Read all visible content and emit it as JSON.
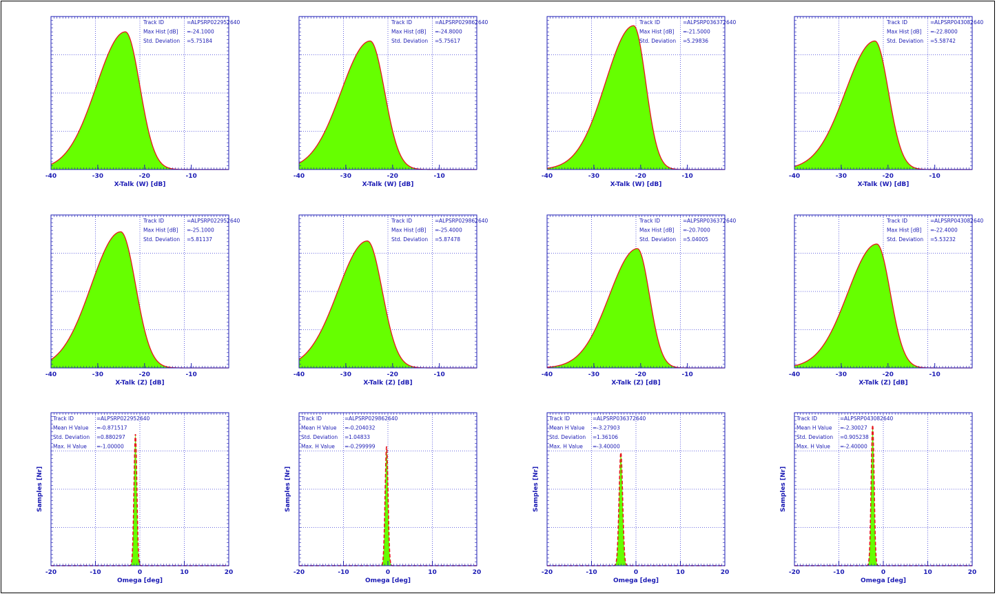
{
  "colors": {
    "axis": "#1b1bb4",
    "grid": "#3a3ad6",
    "fill": "#66ff00",
    "curve": "#e8141e"
  },
  "chart_data": [
    {
      "type": "area",
      "row": 0,
      "col": 0,
      "panel_name": "panel-xtalk-w-1",
      "xlim": [
        -40,
        -2
      ],
      "xticks": [
        -40,
        -30,
        -20,
        -10
      ],
      "xlabel": "X-Talk (W) [dB]",
      "ylabel": "",
      "grid": true,
      "curve": {
        "kind": "skewed",
        "peak_x": -24.1,
        "left_sigma": 6.2,
        "right_sigma": 3.1,
        "peak_level": 0.9
      },
      "annotations": [
        {
          "label": "Track ID",
          "sep": "=",
          "value": "ALPSRP022952640"
        },
        {
          "label": "Max Hist [dB]",
          "sep": "=",
          "value": "-24.1000"
        },
        {
          "label": "Std. Deviation",
          "sep": "=",
          "value": "5.75184"
        }
      ]
    },
    {
      "type": "area",
      "row": 0,
      "col": 1,
      "panel_name": "panel-xtalk-w-2",
      "xlim": [
        -40,
        -2
      ],
      "xticks": [
        -40,
        -30,
        -20,
        -10
      ],
      "xlabel": "X-Talk (W) [dB]",
      "ylabel": "",
      "grid": true,
      "curve": {
        "kind": "skewed",
        "peak_x": -24.8,
        "left_sigma": 6.2,
        "right_sigma": 3.1,
        "peak_level": 0.84
      },
      "annotations": [
        {
          "label": "Track ID",
          "sep": "=",
          "value": "ALPSRP029862640"
        },
        {
          "label": "Max Hist [dB]",
          "sep": "=",
          "value": "-24.8000"
        },
        {
          "label": "Std. Deviation",
          "sep": "=",
          "value": "5.75617"
        }
      ]
    },
    {
      "type": "area",
      "row": 0,
      "col": 2,
      "panel_name": "panel-xtalk-w-3",
      "xlim": [
        -40,
        -2
      ],
      "xticks": [
        -40,
        -30,
        -20,
        -10
      ],
      "xlabel": "X-Talk (W) [dB]",
      "ylabel": "",
      "grid": true,
      "curve": {
        "kind": "skewed",
        "peak_x": -21.5,
        "left_sigma": 6.0,
        "right_sigma": 2.6,
        "peak_level": 0.94
      },
      "annotations": [
        {
          "label": "Track ID",
          "sep": "=",
          "value": "ALPSRP036372640"
        },
        {
          "label": "Max Hist [dB]",
          "sep": "=",
          "value": "-21.5000"
        },
        {
          "label": "Std. Deviation",
          "sep": "=",
          "value": "5.29836"
        }
      ]
    },
    {
      "type": "area",
      "row": 0,
      "col": 3,
      "panel_name": "panel-xtalk-w-4",
      "xlim": [
        -40,
        -2
      ],
      "xticks": [
        -40,
        -30,
        -20,
        -10
      ],
      "xlabel": "X-Talk (W) [dB]",
      "ylabel": "",
      "grid": true,
      "curve": {
        "kind": "skewed",
        "peak_x": -22.8,
        "left_sigma": 6.3,
        "right_sigma": 2.9,
        "peak_level": 0.84
      },
      "annotations": [
        {
          "label": "Track ID",
          "sep": "=",
          "value": "ALPSRP043082640"
        },
        {
          "label": "Max Hist [dB]",
          "sep": "=",
          "value": "-22.8000"
        },
        {
          "label": "Std. Deviation",
          "sep": "=",
          "value": "5.58742"
        }
      ]
    },
    {
      "type": "area",
      "row": 1,
      "col": 0,
      "panel_name": "panel-xtalk-z-1",
      "xlim": [
        -40,
        -2
      ],
      "xticks": [
        -40,
        -30,
        -20,
        -10
      ],
      "xlabel": "X-Talk (Z) [dB]",
      "ylabel": "",
      "grid": true,
      "curve": {
        "kind": "skewed",
        "peak_x": -25.1,
        "left_sigma": 6.3,
        "right_sigma": 3.2,
        "peak_level": 0.89
      },
      "annotations": [
        {
          "label": "Track ID",
          "sep": "=",
          "value": "ALPSRP022952640"
        },
        {
          "label": "Max Hist [dB]",
          "sep": "=",
          "value": "-25.1000"
        },
        {
          "label": "Std. Deviation",
          "sep": "=",
          "value": "5.81137"
        }
      ]
    },
    {
      "type": "area",
      "row": 1,
      "col": 1,
      "panel_name": "panel-xtalk-z-2",
      "xlim": [
        -40,
        -2
      ],
      "xticks": [
        -40,
        -30,
        -20,
        -10
      ],
      "xlabel": "X-Talk (Z) [dB]",
      "ylabel": "",
      "grid": true,
      "curve": {
        "kind": "skewed",
        "peak_x": -25.4,
        "left_sigma": 6.3,
        "right_sigma": 3.2,
        "peak_level": 0.83
      },
      "annotations": [
        {
          "label": "Track ID",
          "sep": "=",
          "value": "ALPSRP029862640"
        },
        {
          "label": "Max Hist [dB]",
          "sep": "=",
          "value": "-25.4000"
        },
        {
          "label": "Std. Deviation",
          "sep": "=",
          "value": "5.87478"
        }
      ]
    },
    {
      "type": "area",
      "row": 1,
      "col": 2,
      "panel_name": "panel-xtalk-z-3",
      "xlim": [
        -40,
        -2
      ],
      "xticks": [
        -40,
        -30,
        -20,
        -10
      ],
      "xlabel": "X-Talk (Z) [dB]",
      "ylabel": "",
      "grid": true,
      "curve": {
        "kind": "skewed",
        "peak_x": -20.7,
        "left_sigma": 6.0,
        "right_sigma": 2.6,
        "peak_level": 0.78
      },
      "annotations": [
        {
          "label": "Track ID",
          "sep": "=",
          "value": "ALPSRP036372640"
        },
        {
          "label": "Max Hist [dB]",
          "sep": "=",
          "value": "-20.7000"
        },
        {
          "label": "Std. Deviation",
          "sep": "=",
          "value": "5.04005"
        }
      ]
    },
    {
      "type": "area",
      "row": 1,
      "col": 3,
      "panel_name": "panel-xtalk-z-4",
      "xlim": [
        -40,
        -2
      ],
      "xticks": [
        -40,
        -30,
        -20,
        -10
      ],
      "xlabel": "X-Talk (Z) [dB]",
      "ylabel": "",
      "grid": true,
      "curve": {
        "kind": "skewed",
        "peak_x": -22.4,
        "left_sigma": 6.2,
        "right_sigma": 2.9,
        "peak_level": 0.81
      },
      "annotations": [
        {
          "label": "Track ID",
          "sep": "=",
          "value": "ALPSRP043082640"
        },
        {
          "label": "Max Hist [dB]",
          "sep": "=",
          "value": "-22.4000"
        },
        {
          "label": "Std. Deviation",
          "sep": "=",
          "value": "5.53232"
        }
      ]
    },
    {
      "type": "area",
      "row": 2,
      "col": 0,
      "panel_name": "panel-omega-1",
      "xlim": [
        -20,
        20
      ],
      "xticks": [
        -20,
        -10,
        0,
        10,
        20
      ],
      "xlabel": "Omega [deg]",
      "ylabel": "Samples [Nr]",
      "grid": true,
      "curve": {
        "kind": "spike",
        "peak_x": -1.0,
        "width": 0.32,
        "peak_level": 0.86
      },
      "annotations": [
        {
          "label": "Track ID",
          "sep": "=",
          "value": "ALPSRP022952640"
        },
        {
          "label": "Mean H Value",
          "sep": "=",
          "value": "-0.871517"
        },
        {
          "label": "Std. Deviation",
          "sep": "=",
          "value": "0.880297"
        },
        {
          "label": "Max. H Value",
          "sep": "=",
          "value": "-1.00000"
        }
      ]
    },
    {
      "type": "area",
      "row": 2,
      "col": 1,
      "panel_name": "panel-omega-2",
      "xlim": [
        -20,
        20
      ],
      "xticks": [
        -20,
        -10,
        0,
        10,
        20
      ],
      "xlabel": "Omega [deg]",
      "ylabel": "Samples [Nr]",
      "grid": true,
      "curve": {
        "kind": "spike",
        "peak_x": -0.3,
        "width": 0.33,
        "peak_level": 0.78
      },
      "annotations": [
        {
          "label": "Track ID",
          "sep": "=",
          "value": "ALPSRP029862640"
        },
        {
          "label": "Mean H Value",
          "sep": "=",
          "value": "-0.204032"
        },
        {
          "label": "Std. Deviation",
          "sep": "=",
          "value": "1.04833"
        },
        {
          "label": "Max. H Value",
          "sep": "=",
          "value": "-0.299999"
        }
      ]
    },
    {
      "type": "area",
      "row": 2,
      "col": 2,
      "panel_name": "panel-omega-3",
      "xlim": [
        -20,
        20
      ],
      "xticks": [
        -20,
        -10,
        0,
        10,
        20
      ],
      "xlabel": "Omega [deg]",
      "ylabel": "Samples [Nr]",
      "grid": true,
      "curve": {
        "kind": "spike",
        "peak_x": -3.4,
        "width": 0.4,
        "peak_level": 0.74
      },
      "annotations": [
        {
          "label": "Track ID",
          "sep": "=",
          "value": "ALPSRP036372640"
        },
        {
          "label": "Mean H Value",
          "sep": "=",
          "value": "-3.27903"
        },
        {
          "label": "Std. Deviation",
          "sep": "=",
          "value": "1.36106"
        },
        {
          "label": "Max. H Value",
          "sep": "=",
          "value": "-3.40000"
        }
      ]
    },
    {
      "type": "area",
      "row": 2,
      "col": 3,
      "panel_name": "panel-omega-4",
      "xlim": [
        -20,
        20
      ],
      "xticks": [
        -20,
        -10,
        0,
        10,
        20
      ],
      "xlabel": "Omega [deg]",
      "ylabel": "Samples [Nr]",
      "grid": true,
      "curve": {
        "kind": "spike",
        "peak_x": -2.4,
        "width": 0.33,
        "peak_level": 0.92
      },
      "annotations": [
        {
          "label": "Track ID",
          "sep": "=",
          "value": "ALPSRP043082640"
        },
        {
          "label": "Mean H Value",
          "sep": "=",
          "value": "-2.30027"
        },
        {
          "label": "Std. Deviation",
          "sep": "=",
          "value": "0.905238"
        },
        {
          "label": "Max. H Value",
          "sep": "=",
          "value": "-2.40000"
        }
      ]
    }
  ]
}
